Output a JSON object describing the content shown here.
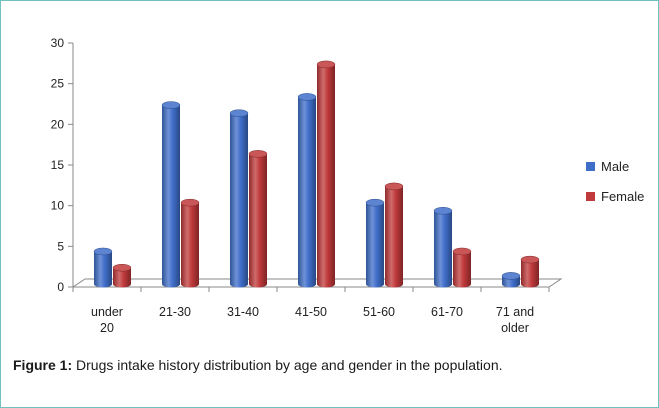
{
  "chart_data": {
    "type": "bar",
    "style": "3d-cylinder",
    "categories": [
      [
        "under",
        "20"
      ],
      [
        "21-30"
      ],
      [
        "31-40"
      ],
      [
        "41-50"
      ],
      [
        "51-60"
      ],
      [
        "61-70"
      ],
      [
        "71 and",
        "older"
      ]
    ],
    "series": [
      {
        "name": "Male",
        "color": "#3f6ec9",
        "values": [
          4,
          22,
          21,
          23,
          10,
          9,
          1
        ]
      },
      {
        "name": "Female",
        "color": "#c0393b",
        "values": [
          2,
          10,
          16,
          27,
          12,
          4,
          3
        ]
      }
    ],
    "y_ticks": [
      0,
      5,
      10,
      15,
      20,
      25,
      30
    ],
    "ylim": [
      0,
      30
    ],
    "grid": false,
    "legend_position": "right"
  },
  "caption": {
    "label": "Figure 1:",
    "text": " Drugs intake history distribution by age and gender in the population."
  }
}
